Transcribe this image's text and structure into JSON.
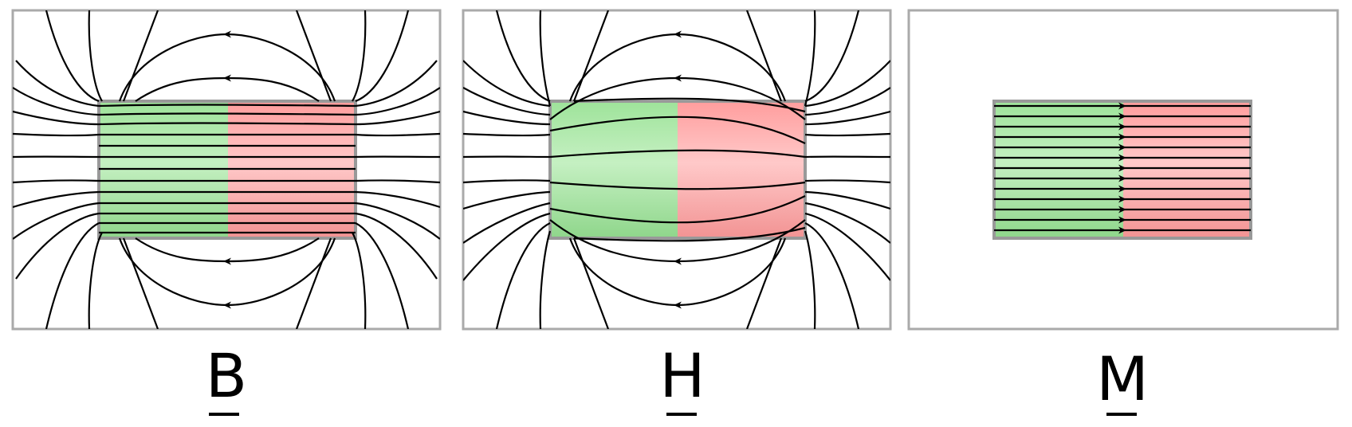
{
  "colors": {
    "north_half": "#9ee39a",
    "south_half": "#ff9d9d",
    "frame": "#aaaaaa",
    "magnet_outline": "#999999",
    "field_line": "#000000"
  },
  "panels": [
    {
      "id": "B",
      "label": "B",
      "underlined": true
    },
    {
      "id": "H",
      "label": "H",
      "underlined": true
    },
    {
      "id": "M",
      "label": "M",
      "underlined": true
    }
  ]
}
